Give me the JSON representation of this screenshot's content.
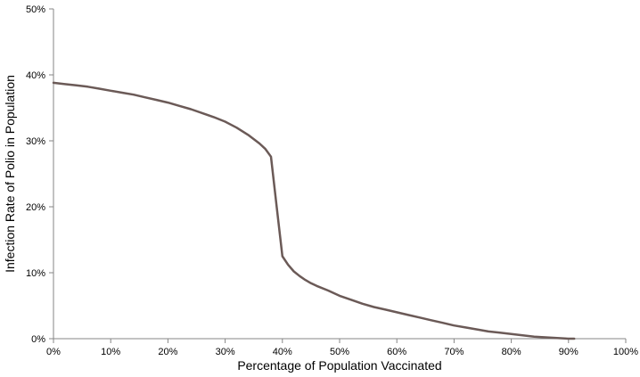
{
  "chart_data": {
    "type": "line",
    "title": "",
    "xlabel": "Percentage of Population Vaccinated",
    "ylabel": "Infection Rate of Polio in Population",
    "xlim": [
      0,
      100
    ],
    "ylim": [
      0,
      50
    ],
    "x_ticks": [
      0,
      10,
      20,
      30,
      40,
      50,
      60,
      70,
      80,
      90,
      100
    ],
    "x_tick_labels": [
      "0%",
      "10%",
      "20%",
      "30%",
      "40%",
      "50%",
      "60%",
      "70%",
      "80%",
      "90%",
      "100%"
    ],
    "y_ticks": [
      0,
      10,
      20,
      30,
      40,
      50
    ],
    "y_tick_labels": [
      "0%",
      "10%",
      "20%",
      "30%",
      "40%",
      "50%"
    ],
    "grid": false,
    "legend": "none",
    "line_color": "#6b5a57",
    "series": [
      {
        "x": [
          0,
          2,
          4,
          6,
          8,
          10,
          12,
          14,
          16,
          18,
          20,
          22,
          24,
          26,
          28,
          30,
          32,
          34,
          36,
          37,
          38,
          39,
          40,
          41,
          42,
          43,
          44,
          45,
          46,
          48,
          50,
          52,
          54,
          56,
          58,
          60,
          62,
          64,
          66,
          68,
          70,
          72,
          74,
          76,
          78,
          80,
          82,
          84,
          86,
          88,
          90,
          91
        ],
        "y": [
          38.8,
          38.6,
          38.4,
          38.2,
          37.9,
          37.6,
          37.3,
          37.0,
          36.6,
          36.2,
          35.8,
          35.3,
          34.8,
          34.2,
          33.6,
          32.9,
          32.0,
          30.9,
          29.6,
          28.8,
          27.6,
          20.0,
          12.5,
          11.2,
          10.2,
          9.5,
          8.9,
          8.4,
          8.0,
          7.3,
          6.5,
          5.9,
          5.3,
          4.8,
          4.4,
          4.0,
          3.6,
          3.2,
          2.8,
          2.4,
          2.0,
          1.7,
          1.4,
          1.1,
          0.9,
          0.7,
          0.5,
          0.3,
          0.2,
          0.1,
          0.0,
          0.0
        ]
      }
    ]
  }
}
